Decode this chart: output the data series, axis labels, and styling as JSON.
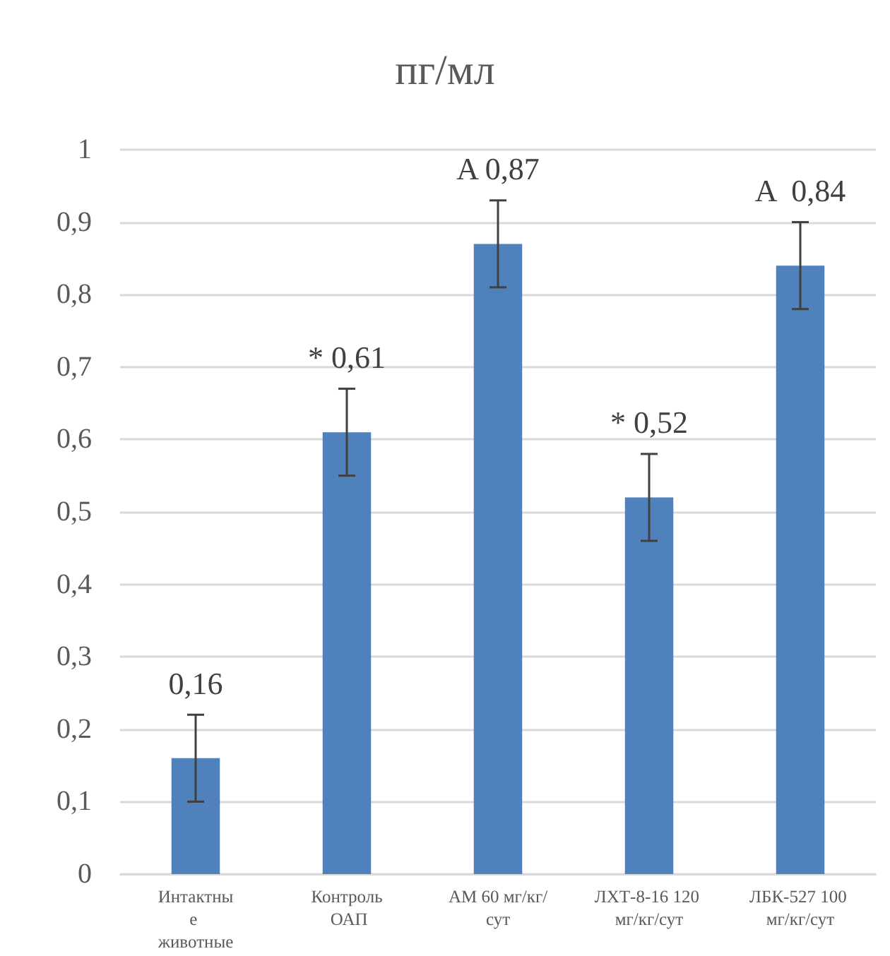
{
  "chart_data": {
    "type": "bar",
    "title": "пг/мл",
    "categories": [
      "Интактные животные",
      "Контроль ОАП",
      "АМ 60 мг/кг/сут",
      "ЛХТ-8-16 120 мг/кг/сут",
      "ЛБК-527 100 мг/кг/сут"
    ],
    "values": [
      0.16,
      0.61,
      0.87,
      0.52,
      0.84
    ],
    "errors": [
      0.06,
      0.06,
      0.06,
      0.06,
      0.06
    ],
    "value_labels": [
      "0,16",
      "* 0,61",
      "A 0,87",
      "* 0,52",
      "A  0,84"
    ],
    "color": "#4f81bd",
    "ylim": [
      0,
      1
    ],
    "yticks": [
      0,
      {
        "value": 0.1,
        "label": "0,1"
      },
      {
        "value": 0.2,
        "label": "0,2"
      },
      {
        "value": 0.3,
        "label": "0,3"
      },
      {
        "value": 0.4,
        "label": "0,4"
      },
      {
        "value": 0.5,
        "label": "0,5"
      },
      {
        "value": 0.6,
        "label": "0,6"
      },
      {
        "value": 0.7,
        "label": "0,7"
      },
      {
        "value": 0.8,
        "label": "0,8"
      },
      {
        "value": 0.9,
        "label": "0,9"
      },
      1
    ],
    "grid": true
  }
}
